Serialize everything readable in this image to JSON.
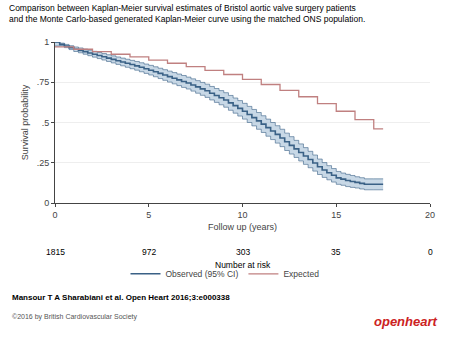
{
  "chart_data": {
    "type": "line",
    "title": "Comparison between Kaplan-Meier survival estimates of Bristol aortic valve surgery patients\nand the Monte Carlo-based generated Kaplan-Meier curve using the matched ONS population.",
    "xlabel": "Follow up (years)",
    "ylabel": "Survival probability",
    "xlim": [
      0,
      20
    ],
    "ylim": [
      0,
      1
    ],
    "xticks": [
      0,
      5,
      10,
      15,
      20
    ],
    "yticks": [
      0,
      {
        "value": 0.25,
        "label": ".25"
      },
      {
        "value": 0.5,
        "label": ".5"
      },
      {
        "value": 0.75,
        "label": ".75"
      },
      1
    ],
    "grid": "y",
    "legend": "bottom",
    "series": [
      {
        "name": "Observed (95% CI)",
        "color": "#3a6186",
        "line_style": "step",
        "band_color": "#b0c8dc",
        "x": [
          0,
          0.25,
          0.5,
          0.75,
          1,
          1.25,
          1.5,
          1.75,
          2,
          2.25,
          2.5,
          2.75,
          3,
          3.25,
          3.5,
          3.75,
          4,
          4.25,
          4.5,
          4.75,
          5,
          5.25,
          5.5,
          5.75,
          6,
          6.25,
          6.5,
          6.75,
          7,
          7.25,
          7.5,
          7.75,
          8,
          8.25,
          8.5,
          8.75,
          9,
          9.25,
          9.5,
          9.75,
          10,
          10.25,
          10.5,
          10.75,
          11,
          11.25,
          11.5,
          11.75,
          12,
          12.25,
          12.5,
          12.75,
          13,
          13.25,
          13.5,
          13.75,
          14,
          14.25,
          14.5,
          14.75,
          15,
          15.25,
          15.5,
          15.75,
          16,
          16.25,
          16.5,
          17,
          17.5
        ],
        "values": [
          1.0,
          0.985,
          0.975,
          0.965,
          0.955,
          0.948,
          0.94,
          0.932,
          0.924,
          0.916,
          0.908,
          0.9,
          0.892,
          0.884,
          0.876,
          0.868,
          0.86,
          0.852,
          0.843,
          0.834,
          0.825,
          0.815,
          0.805,
          0.795,
          0.785,
          0.775,
          0.765,
          0.755,
          0.745,
          0.733,
          0.721,
          0.709,
          0.697,
          0.682,
          0.668,
          0.654,
          0.64,
          0.622,
          0.605,
          0.588,
          0.57,
          0.55,
          0.53,
          0.51,
          0.49,
          0.468,
          0.447,
          0.426,
          0.404,
          0.38,
          0.358,
          0.336,
          0.314,
          0.292,
          0.27,
          0.248,
          0.225,
          0.205,
          0.188,
          0.172,
          0.156,
          0.148,
          0.14,
          0.134,
          0.128,
          0.122,
          0.116,
          0.116,
          0.116
        ],
        "upper": [
          1.0,
          0.993,
          0.985,
          0.977,
          0.969,
          0.963,
          0.956,
          0.949,
          0.942,
          0.935,
          0.928,
          0.921,
          0.914,
          0.907,
          0.9,
          0.893,
          0.886,
          0.879,
          0.871,
          0.863,
          0.855,
          0.846,
          0.837,
          0.828,
          0.819,
          0.81,
          0.801,
          0.792,
          0.782,
          0.771,
          0.76,
          0.749,
          0.738,
          0.724,
          0.711,
          0.698,
          0.685,
          0.668,
          0.652,
          0.636,
          0.619,
          0.6,
          0.581,
          0.562,
          0.542,
          0.521,
          0.5,
          0.48,
          0.458,
          0.434,
          0.412,
          0.389,
          0.367,
          0.344,
          0.321,
          0.298,
          0.273,
          0.251,
          0.232,
          0.214,
          0.196,
          0.186,
          0.178,
          0.171,
          0.163,
          0.157,
          0.15,
          0.15,
          0.15
        ],
        "lower": [
          0.975,
          0.977,
          0.965,
          0.953,
          0.941,
          0.933,
          0.924,
          0.915,
          0.906,
          0.897,
          0.888,
          0.879,
          0.87,
          0.861,
          0.852,
          0.843,
          0.834,
          0.825,
          0.815,
          0.805,
          0.795,
          0.784,
          0.773,
          0.762,
          0.751,
          0.74,
          0.729,
          0.718,
          0.708,
          0.695,
          0.682,
          0.669,
          0.656,
          0.64,
          0.625,
          0.61,
          0.595,
          0.576,
          0.558,
          0.54,
          0.521,
          0.5,
          0.479,
          0.458,
          0.438,
          0.415,
          0.394,
          0.372,
          0.35,
          0.326,
          0.304,
          0.283,
          0.261,
          0.24,
          0.219,
          0.198,
          0.177,
          0.159,
          0.144,
          0.13,
          0.116,
          0.11,
          0.102,
          0.097,
          0.093,
          0.087,
          0.082,
          0.082,
          0.082
        ]
      },
      {
        "name": "Expected",
        "color": "#c08080",
        "line_style": "step",
        "x": [
          0,
          1,
          2,
          3,
          4,
          5,
          6,
          7,
          8,
          9,
          10,
          11,
          12,
          13,
          14,
          15,
          16,
          17,
          17.5
        ],
        "values": [
          0.97,
          0.955,
          0.94,
          0.924,
          0.907,
          0.888,
          0.868,
          0.847,
          0.824,
          0.798,
          0.768,
          0.736,
          0.7,
          0.66,
          0.617,
          0.57,
          0.518,
          0.46,
          0.46
        ]
      }
    ],
    "number_at_risk": {
      "label": "Number at risk",
      "x": [
        0,
        5,
        10,
        15,
        20
      ],
      "values": [
        1815,
        972,
        303,
        35,
        0
      ]
    },
    "annotations": [
      {
        "text": "Mansour T A Sharabiani et al. Open Heart 2016;3:e000338"
      },
      {
        "text": "©2016 by British Cardiovascular Society"
      },
      {
        "text": "openheart",
        "color": "#cc2222"
      }
    ]
  }
}
